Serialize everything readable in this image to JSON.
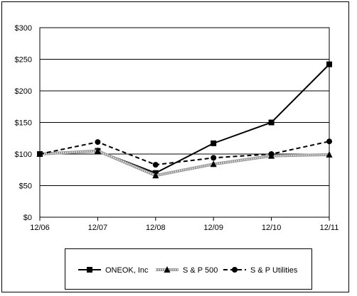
{
  "chart_data": {
    "type": "line",
    "categories": [
      "12/06",
      "12/07",
      "12/08",
      "12/09",
      "12/10",
      "12/11"
    ],
    "ylim": [
      0,
      300
    ],
    "yticks": [
      "$0",
      "$50",
      "$100",
      "$150",
      "$200",
      "$250",
      "$300"
    ],
    "grid": true,
    "legend_position": "bottom",
    "series": [
      {
        "name": "ONEOK, Inc",
        "marker": "square",
        "line": "solid",
        "color": "#000000",
        "values": [
          100,
          105,
          70,
          117,
          150,
          242
        ]
      },
      {
        "name": "S & P 500",
        "marker": "triangle",
        "line": "hatched",
        "color": "#808080",
        "values": [
          100,
          105,
          66,
          84,
          97,
          99
        ]
      },
      {
        "name": "S & P Utilities",
        "marker": "circle",
        "line": "dashed",
        "color": "#000000",
        "values": [
          100,
          119,
          83,
          94,
          100,
          120
        ]
      }
    ]
  }
}
